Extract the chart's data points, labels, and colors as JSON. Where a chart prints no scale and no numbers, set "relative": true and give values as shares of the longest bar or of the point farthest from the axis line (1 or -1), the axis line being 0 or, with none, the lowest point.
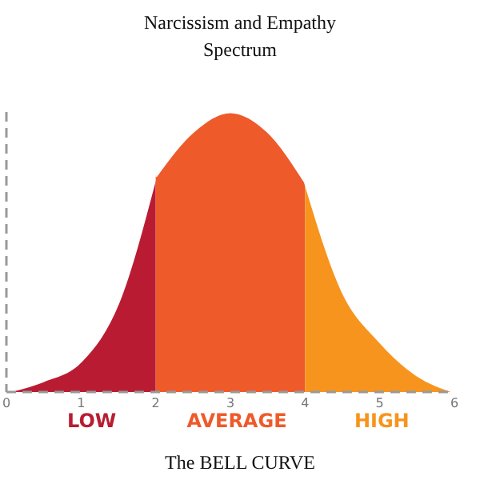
{
  "chart_data": {
    "type": "area",
    "title": "Narcissism and Empathy Spectrum",
    "relative": true,
    "xlim": [
      0,
      6
    ],
    "xticks": [
      0,
      1,
      2,
      3,
      4,
      5,
      6
    ],
    "series": [
      {
        "name": "LOW",
        "color": "#b91c32",
        "x": [
          0,
          0.5,
          1,
          1.5,
          2
        ],
        "values": [
          0,
          0.04,
          0.11,
          0.32,
          0.77
        ]
      },
      {
        "name": "AVERAGE",
        "color": "#ee5a2a",
        "x": [
          2,
          2.5,
          3,
          3.5,
          4
        ],
        "values": [
          0.77,
          0.93,
          1,
          0.93,
          0.75
        ]
      },
      {
        "name": "HIGH",
        "color": "#f7941d",
        "x": [
          4,
          4.5,
          5,
          5.5,
          6
        ],
        "values": [
          0.75,
          0.36,
          0.18,
          0.06,
          0
        ]
      }
    ],
    "annotations": [
      "The BELL CURVE"
    ]
  }
}
